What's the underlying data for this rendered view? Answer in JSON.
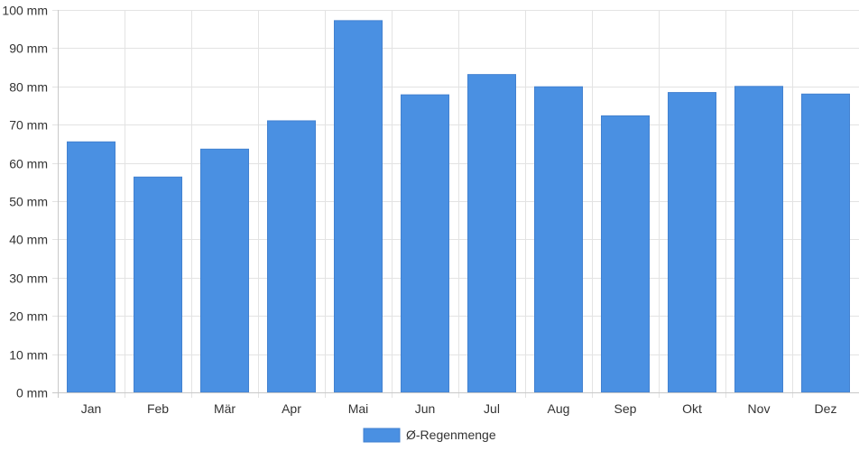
{
  "chart_data": {
    "type": "bar",
    "categories": [
      "Jan",
      "Feb",
      "Mär",
      "Apr",
      "Mai",
      "Jun",
      "Jul",
      "Aug",
      "Sep",
      "Okt",
      "Nov",
      "Dez"
    ],
    "series": [
      {
        "name": "Ø-Regenmenge",
        "values": [
          65.5,
          56.3,
          63.6,
          71.0,
          97.2,
          77.8,
          83.1,
          79.9,
          72.3,
          78.4,
          80.0,
          78.0
        ],
        "color": "#4a90e2"
      }
    ],
    "y_ticks": [
      "0 mm",
      "10 mm",
      "20 mm",
      "30 mm",
      "40 mm",
      "50 mm",
      "60 mm",
      "70 mm",
      "80 mm",
      "90 mm",
      "100 mm"
    ],
    "ylim": [
      0,
      100
    ],
    "unit": "mm",
    "grid": true,
    "legend_position": "bottom-center"
  }
}
